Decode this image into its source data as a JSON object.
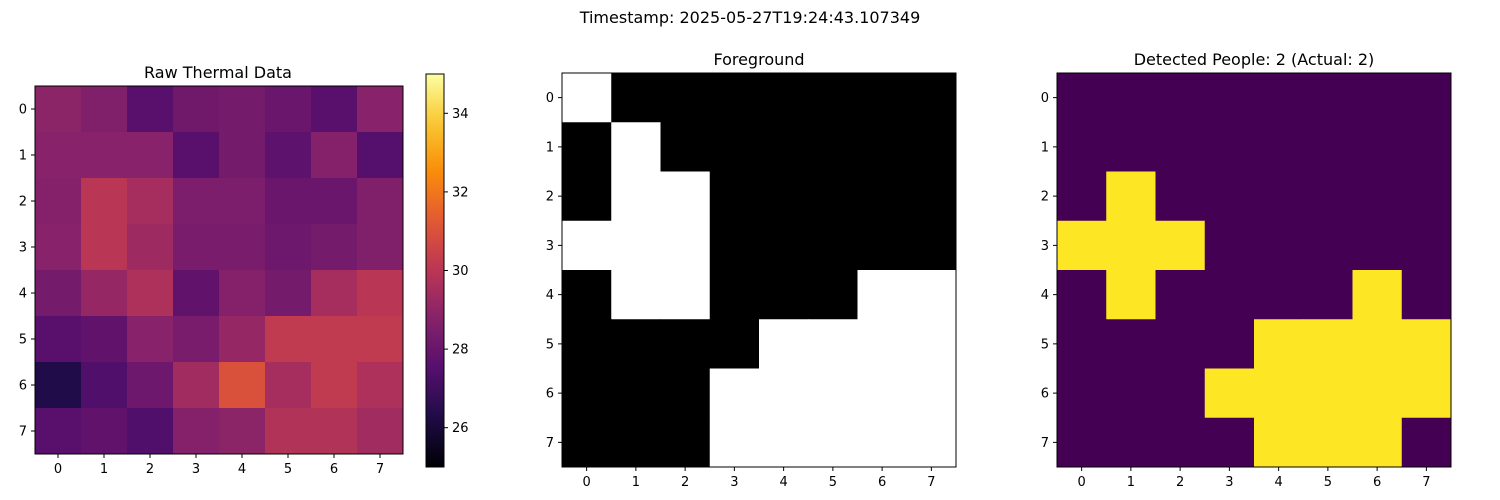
{
  "figure": {
    "suptitle": "Timestamp: 2025-05-27T19:24:43.107349"
  },
  "chart_data": [
    {
      "type": "heatmap",
      "title": "Raw Thermal Data",
      "colormap": "inferno",
      "vmin": 25,
      "vmax": 35,
      "x_ticks": [
        "0",
        "1",
        "2",
        "3",
        "4",
        "5",
        "6",
        "7"
      ],
      "y_ticks": [
        "0",
        "1",
        "2",
        "3",
        "4",
        "5",
        "6",
        "7"
      ],
      "colorbar": {
        "ticks": [
          "26",
          "28",
          "30",
          "32",
          "34"
        ],
        "tick_values": [
          26,
          28,
          30,
          32,
          34
        ]
      },
      "values": [
        [
          28.9,
          28.6,
          27.6,
          28.2,
          28.3,
          28.0,
          27.6,
          28.8
        ],
        [
          28.8,
          28.8,
          28.8,
          27.6,
          28.3,
          27.7,
          28.7,
          27.5
        ],
        [
          28.7,
          30.0,
          29.5,
          28.5,
          28.5,
          28.0,
          28.0,
          28.6
        ],
        [
          28.8,
          30.0,
          29.3,
          28.4,
          28.4,
          28.1,
          28.3,
          28.6
        ],
        [
          28.3,
          29.1,
          29.7,
          27.8,
          28.7,
          28.3,
          29.5,
          30.0
        ],
        [
          27.6,
          27.8,
          28.8,
          28.4,
          29.1,
          30.2,
          30.2,
          30.2
        ],
        [
          26.3,
          27.4,
          28.1,
          29.4,
          31.0,
          29.5,
          30.2,
          29.7
        ],
        [
          27.6,
          27.8,
          27.4,
          28.7,
          28.9,
          29.8,
          29.8,
          29.4
        ]
      ]
    },
    {
      "type": "heatmap",
      "title": "Foreground",
      "colormap": "gray",
      "colors": {
        "0": "#000000",
        "1": "#ffffff"
      },
      "x_ticks": [
        "0",
        "1",
        "2",
        "3",
        "4",
        "5",
        "6",
        "7"
      ],
      "y_ticks": [
        "0",
        "1",
        "2",
        "3",
        "4",
        "5",
        "6",
        "7"
      ],
      "values": [
        [
          1,
          0,
          0,
          0,
          0,
          0,
          0,
          0
        ],
        [
          0,
          1,
          0,
          0,
          0,
          0,
          0,
          0
        ],
        [
          0,
          1,
          1,
          0,
          0,
          0,
          0,
          0
        ],
        [
          1,
          1,
          1,
          0,
          0,
          0,
          0,
          0
        ],
        [
          0,
          1,
          1,
          0,
          0,
          0,
          1,
          1
        ],
        [
          0,
          0,
          0,
          0,
          1,
          1,
          1,
          1
        ],
        [
          0,
          0,
          0,
          1,
          1,
          1,
          1,
          1
        ],
        [
          0,
          0,
          0,
          1,
          1,
          1,
          1,
          1
        ]
      ]
    },
    {
      "type": "heatmap",
      "title": "Detected People: 2 (Actual: 2)",
      "colormap": "viridis",
      "colors": {
        "0": "#440154",
        "1": "#fde725"
      },
      "x_ticks": [
        "0",
        "1",
        "2",
        "3",
        "4",
        "5",
        "6",
        "7"
      ],
      "y_ticks": [
        "0",
        "1",
        "2",
        "3",
        "4",
        "5",
        "6",
        "7"
      ],
      "values": [
        [
          0,
          0,
          0,
          0,
          0,
          0,
          0,
          0
        ],
        [
          0,
          0,
          0,
          0,
          0,
          0,
          0,
          0
        ],
        [
          0,
          1,
          0,
          0,
          0,
          0,
          0,
          0
        ],
        [
          1,
          1,
          1,
          0,
          0,
          0,
          0,
          0
        ],
        [
          0,
          1,
          0,
          0,
          0,
          0,
          1,
          0
        ],
        [
          0,
          0,
          0,
          0,
          1,
          1,
          1,
          1
        ],
        [
          0,
          0,
          0,
          1,
          1,
          1,
          1,
          1
        ],
        [
          0,
          0,
          0,
          0,
          1,
          1,
          1,
          0
        ]
      ]
    }
  ]
}
